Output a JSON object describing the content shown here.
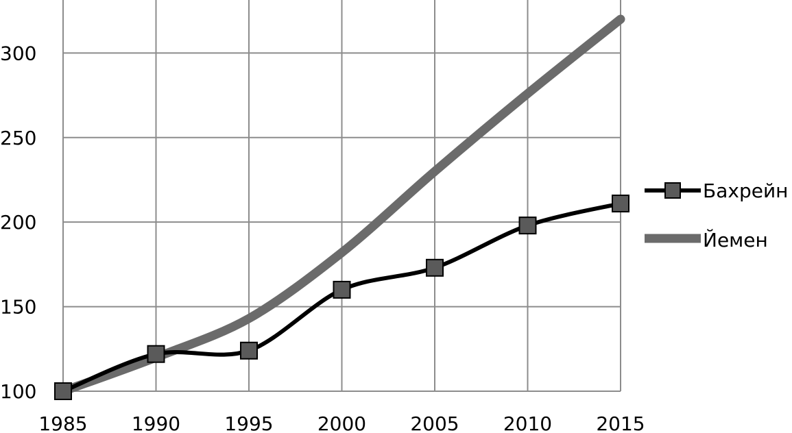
{
  "chart_data": {
    "type": "line",
    "x": [
      1985,
      1990,
      1995,
      2000,
      2005,
      2010,
      2015
    ],
    "x_ticks": [
      "1985",
      "1990",
      "1995",
      "2000",
      "2005",
      "2010",
      "2015"
    ],
    "y_ticks": [
      "100",
      "150",
      "200",
      "250",
      "300"
    ],
    "xlim": [
      1985,
      2015
    ],
    "ylim": [
      100,
      320
    ],
    "grid": true,
    "legend": "right",
    "series": [
      {
        "name": "Бахрейн",
        "values": [
          100,
          122,
          124,
          160,
          173,
          198,
          211
        ],
        "color": "#000000",
        "marker": "square",
        "marker_color": "#5a5a5a"
      },
      {
        "name": "Йемен",
        "values": [
          100,
          120,
          143,
          182,
          230,
          276,
          320
        ],
        "color": "#6b6b6b",
        "marker": "none"
      }
    ]
  }
}
